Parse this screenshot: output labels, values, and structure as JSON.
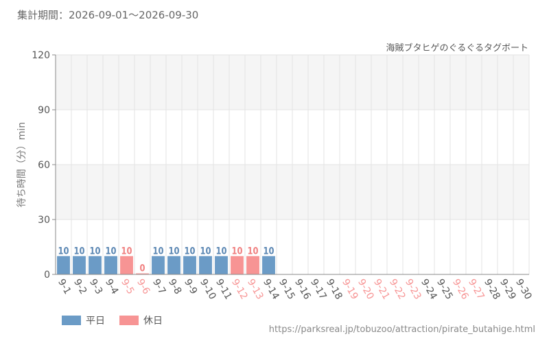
{
  "period_text": "集計期間：2026-09-01～2026-09-30",
  "source_url": "https://parksreal.jp/tobuzoo/attraction/pirate_butahige.html",
  "colors": {
    "weekday": "#6b9bc6",
    "holiday": "#f79494",
    "weekday_text": "#5b87b3",
    "holiday_text": "#f08080",
    "band": "#f5f5f5",
    "grid": "#e3e3e3"
  },
  "legend": [
    {
      "label": "平日",
      "kind": "weekday"
    },
    {
      "label": "休日",
      "kind": "holiday"
    }
  ],
  "chart_data": {
    "type": "bar",
    "title": "海賊ブタヒゲのぐるぐるタグボート",
    "ylabel": "待ち時間（分）min",
    "ylim": [
      0,
      120
    ],
    "yticks": [
      "0",
      "30",
      "60",
      "90",
      "120"
    ],
    "categories": [
      "9-1",
      "9-2",
      "9-3",
      "9-4",
      "9-5",
      "9-6",
      "9-7",
      "9-8",
      "9-9",
      "9-10",
      "9-11",
      "9-12",
      "9-13",
      "9-14",
      "9-15",
      "9-16",
      "9-17",
      "9-18",
      "9-19",
      "9-20",
      "9-21",
      "9-22",
      "9-23",
      "9-24",
      "9-25",
      "9-26",
      "9-27",
      "9-28",
      "9-29",
      "9-30"
    ],
    "day_types": [
      "weekday",
      "weekday",
      "weekday",
      "weekday",
      "holiday",
      "holiday",
      "weekday",
      "weekday",
      "weekday",
      "weekday",
      "weekday",
      "holiday",
      "holiday",
      "weekday",
      "weekday",
      "weekday",
      "weekday",
      "weekday",
      "holiday",
      "holiday",
      "holiday",
      "holiday",
      "holiday",
      "weekday",
      "weekday",
      "holiday",
      "holiday",
      "weekday",
      "weekday",
      "weekday"
    ],
    "values": [
      10,
      10,
      10,
      10,
      10,
      0,
      10,
      10,
      10,
      10,
      10,
      10,
      10,
      10,
      null,
      null,
      null,
      null,
      null,
      null,
      null,
      null,
      null,
      null,
      null,
      null,
      null,
      null,
      null,
      null
    ],
    "value_labels": [
      "10",
      "10",
      "10",
      "10",
      "10",
      "0",
      "10",
      "10",
      "10",
      "10",
      "10",
      "10",
      "10",
      "10",
      "",
      "",
      "",
      "",
      "",
      "",
      "",
      "",
      "",
      "",
      "",
      "",
      "",
      "",
      "",
      ""
    ]
  }
}
